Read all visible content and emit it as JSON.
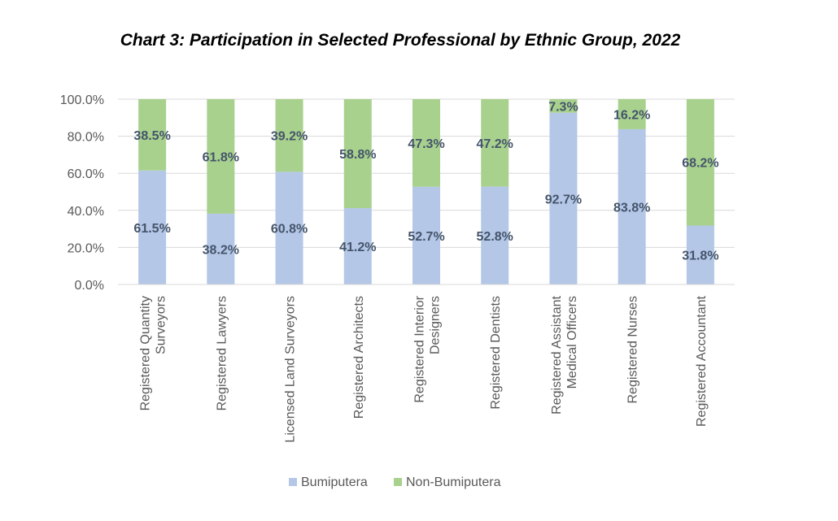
{
  "chart_data": {
    "type": "bar",
    "stacked": true,
    "title": "Chart 3: Participation in Selected Professional by Ethnic Group, 2022",
    "categories": [
      [
        "Registered Quantity",
        "Surveyors"
      ],
      [
        "Registered Lawyers"
      ],
      [
        "Licensed Land Surveyors"
      ],
      [
        "Registered Architects"
      ],
      [
        "Registered Interior",
        "Designers"
      ],
      [
        "Registered Dentists"
      ],
      [
        "Registered Assistant",
        "Medical Officers"
      ],
      [
        "Registered Nurses"
      ],
      [
        "Registered Accountant"
      ]
    ],
    "series": [
      {
        "name": "Bumiputera",
        "color": "#B4C7E7",
        "values": [
          61.5,
          38.2,
          60.8,
          41.2,
          52.7,
          52.8,
          92.7,
          83.8,
          31.8
        ],
        "labels": [
          "61.5%",
          "38.2%",
          "60.8%",
          "41.2%",
          "52.7%",
          "52.8%",
          "92.7%",
          "83.8%",
          "31.8%"
        ]
      },
      {
        "name": "Non-Bumiputera",
        "color": "#A9D18E",
        "values": [
          38.5,
          61.8,
          39.2,
          58.8,
          47.3,
          47.2,
          7.3,
          16.2,
          68.2
        ],
        "labels": [
          "38.5%",
          "61.8%",
          "39.2%",
          "58.8%",
          "47.3%",
          "47.2%",
          "7.3%",
          "16.2%",
          "68.2%"
        ]
      }
    ],
    "ylim": [
      0,
      100
    ],
    "yticks": [
      "0.0%",
      "20.0%",
      "40.0%",
      "60.0%",
      "80.0%",
      "100.0%"
    ],
    "xlabel": "",
    "ylabel": "",
    "grid": true,
    "legend_position": "bottom",
    "data_label_color": "#44546A",
    "grid_color": "#D9D9D9"
  }
}
